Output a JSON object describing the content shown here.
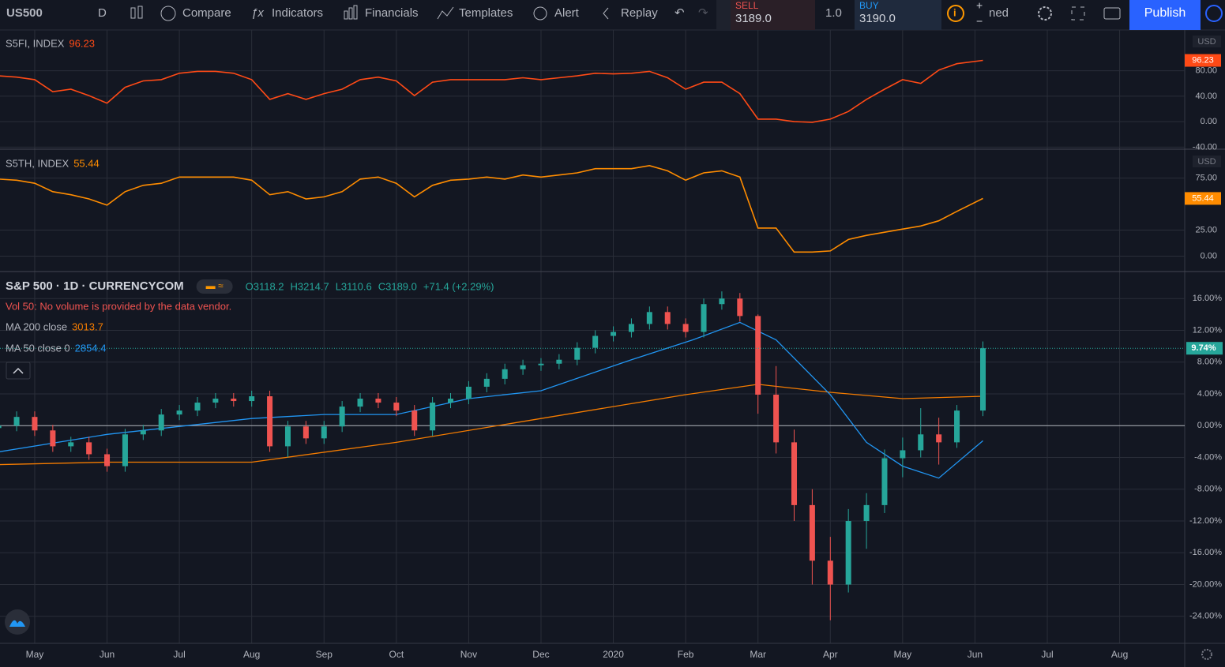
{
  "toolbar": {
    "symbol": "US500",
    "interval": "D",
    "compare": "Compare",
    "indicators": "Indicators",
    "financials": "Financials",
    "templates": "Templates",
    "alert": "Alert",
    "replay": "Replay",
    "sell_label": "SELL",
    "sell_price": "3189.0",
    "quantity": "1.0",
    "buy_label": "BUY",
    "buy_price": "3190.0",
    "layout_name": "ned",
    "publish": "Publish"
  },
  "time_axis": {
    "xlim": [
      -0.48,
      15.9
    ],
    "xticks": [
      {
        "value": 0,
        "label": "May"
      },
      {
        "value": 1,
        "label": "Jun"
      },
      {
        "value": 2,
        "label": "Jul"
      },
      {
        "value": 3,
        "label": "Aug"
      },
      {
        "value": 4,
        "label": "Sep"
      },
      {
        "value": 5,
        "label": "Oct"
      },
      {
        "value": 6,
        "label": "Nov"
      },
      {
        "value": 7,
        "label": "Dec"
      },
      {
        "value": 8,
        "label": "2020"
      },
      {
        "value": 9,
        "label": "Feb"
      },
      {
        "value": 10,
        "label": "Mar"
      },
      {
        "value": 11,
        "label": "Apr"
      },
      {
        "value": 12,
        "label": "May"
      },
      {
        "value": 13,
        "label": "Jun"
      },
      {
        "value": 14,
        "label": "Jul"
      },
      {
        "value": 15,
        "label": "Aug"
      }
    ],
    "x": [
      -0.5,
      -0.25,
      0,
      0.25,
      0.5,
      0.75,
      1,
      1.25,
      1.5,
      1.75,
      2,
      2.25,
      2.5,
      2.75,
      3,
      3.25,
      3.5,
      3.75,
      4,
      4.25,
      4.5,
      4.75,
      5,
      5.25,
      5.5,
      5.75,
      6,
      6.25,
      6.5,
      6.75,
      7,
      7.25,
      7.5,
      7.75,
      8,
      8.25,
      8.5,
      8.75,
      9,
      9.25,
      9.5,
      9.75,
      10,
      10.25,
      10.5,
      10.75,
      11,
      11.25,
      11.5,
      11.75,
      12,
      12.25,
      12.5,
      12.75,
      13.11
    ]
  },
  "panes": [
    {
      "type": "line",
      "name": "S5FI, INDEX",
      "currency": "USD",
      "color": "#ff4a16",
      "values": [
        72,
        70,
        66,
        47,
        51,
        41,
        29,
        54,
        64,
        66,
        76,
        79,
        79,
        76,
        66,
        35,
        44,
        35,
        44,
        51,
        66,
        70,
        64,
        41,
        62,
        66,
        66,
        66,
        66,
        69,
        66,
        69,
        72,
        76,
        75,
        76,
        79,
        69,
        51,
        62,
        62,
        44,
        4,
        4,
        0,
        -1,
        4,
        16,
        35,
        51,
        66,
        60,
        81,
        91,
        96.23
      ],
      "ylim": [
        -42,
        144
      ],
      "yticks": [
        {
          "value": 80,
          "label": "80.00"
        },
        {
          "value": 40,
          "label": "40.00"
        },
        {
          "value": 0,
          "label": "0.00"
        },
        {
          "value": -40,
          "label": "-40.00"
        }
      ]
    },
    {
      "type": "line",
      "name": "S5TH, INDEX",
      "currency": "USD",
      "color": "#ff8c00",
      "values": [
        74,
        73,
        70,
        62,
        59,
        55,
        49,
        62,
        68,
        70,
        76,
        76,
        76,
        76,
        73,
        59,
        62,
        55,
        57,
        62,
        74,
        76,
        70,
        57,
        68,
        73,
        74,
        76,
        74,
        78,
        76,
        78,
        80,
        84,
        84,
        84,
        87,
        82,
        73,
        80,
        82,
        76,
        27,
        27,
        4,
        4,
        5,
        16,
        20,
        23,
        26,
        29,
        34,
        43,
        55.44
      ],
      "ylim": [
        -14,
        102
      ],
      "yticks": [
        {
          "value": 75,
          "label": "75.00"
        },
        {
          "value": 25,
          "label": "25.00"
        },
        {
          "value": 0,
          "label": "0.00"
        }
      ]
    }
  ],
  "main": {
    "type": "candlestick",
    "up_color": "#26a69a",
    "down_color": "#ef5350",
    "title": "S&P 500 · 1D · CURRENCYCOM",
    "open_label": "O3118.2",
    "high_label": "H3214.7",
    "low_label": "L3110.6",
    "close_label": "C3189.0",
    "change_label": "+71.4 (+2.29%)",
    "volume_note": "Vol 50: No volume is provided by the data vendor.",
    "last_label": "9.74%",
    "open": [
      -0.3,
      0,
      1.1,
      -0.6,
      -2.6,
      -2.1,
      -3.6,
      -5.1,
      -1.1,
      -0.6,
      1.4,
      1.9,
      2.9,
      3.4,
      3.1,
      3.7,
      -2.6,
      -0.1,
      -1.6,
      -0.1,
      2.4,
      3.4,
      2.9,
      1.9,
      -0.6,
      2.9,
      3.4,
      4.9,
      5.9,
      7.1,
      7.6,
      7.8,
      8.3,
      9.8,
      11.3,
      11.8,
      12.8,
      14.3,
      12.8,
      11.8,
      15.3,
      16.0,
      13.8,
      3.9,
      -2.1,
      -10.0,
      -17.0,
      -20.0,
      -12.0,
      -10.0,
      -4.1,
      -3.1,
      -1.1,
      -2.1,
      1.9
    ],
    "high": [
      0.7,
      1.8,
      1.8,
      0.1,
      -1.4,
      -1.4,
      -2.9,
      -0.4,
      0.1,
      2.1,
      2.6,
      3.6,
      4.1,
      4.1,
      4.4,
      4.4,
      0.6,
      0.6,
      0.6,
      3.1,
      4.1,
      4.1,
      3.6,
      2.6,
      3.6,
      4.1,
      5.6,
      6.6,
      7.8,
      8.3,
      8.5,
      9.0,
      10.5,
      12.0,
      12.5,
      13.5,
      15.0,
      15.0,
      13.5,
      16.0,
      16.9,
      16.7,
      14.0,
      7.5,
      -0.5,
      -8.0,
      -14.0,
      -10.5,
      -8.5,
      -3.0,
      -1.5,
      2.2,
      1.0,
      2.6,
      10.6
    ],
    "low": [
      -1.0,
      -0.7,
      -1.3,
      -3.3,
      -3.3,
      -4.3,
      -5.8,
      -5.8,
      -1.8,
      -1.3,
      0.7,
      1.2,
      2.2,
      2.4,
      2.4,
      -3.3,
      -4.0,
      -2.3,
      -2.3,
      -0.8,
      1.7,
      2.2,
      1.2,
      -1.3,
      -1.3,
      2.2,
      2.7,
      4.2,
      5.2,
      6.4,
      6.9,
      7.1,
      7.6,
      9.1,
      10.6,
      11.1,
      12.1,
      12.1,
      11.1,
      11.1,
      14.6,
      13.1,
      1.5,
      -3.5,
      -12.0,
      -20.0,
      -24.5,
      -21.0,
      -15.5,
      -11.0,
      -6.5,
      -4.0,
      -4.9,
      -2.8,
      1.2
    ],
    "close": [
      0,
      1.1,
      -0.6,
      -2.6,
      -2.1,
      -3.6,
      -5.1,
      -1.1,
      -0.6,
      1.4,
      1.9,
      2.9,
      3.4,
      3.1,
      3.7,
      -2.6,
      -0.1,
      -1.6,
      -0.1,
      2.4,
      3.4,
      2.9,
      1.9,
      -0.6,
      2.9,
      3.4,
      4.9,
      5.9,
      7.1,
      7.6,
      7.8,
      8.3,
      9.8,
      11.3,
      11.8,
      12.8,
      14.3,
      12.8,
      11.8,
      15.3,
      16.0,
      13.8,
      3.9,
      -2.1,
      -10.0,
      -17.0,
      -20.0,
      -12.0,
      -10.0,
      -4.1,
      -3.1,
      -1.1,
      -2.1,
      1.9,
      9.74
    ],
    "ylim": [
      -27.4,
      19.3
    ],
    "yticks": [
      {
        "value": 16,
        "label": "16.00%"
      },
      {
        "value": 12,
        "label": "12.00%"
      },
      {
        "value": 8,
        "label": "8.00%"
      },
      {
        "value": 4,
        "label": "4.00%"
      },
      {
        "value": 0,
        "label": "0.00%"
      },
      {
        "value": -4,
        "label": "-4.00%"
      },
      {
        "value": -8,
        "label": "-8.00%"
      },
      {
        "value": -12,
        "label": "-12.00%"
      },
      {
        "value": -16,
        "label": "-16.00%"
      },
      {
        "value": -20,
        "label": "-20.00%"
      },
      {
        "value": -24,
        "label": "-24.00%"
      }
    ],
    "studies": [
      {
        "name": "MA 200 close",
        "value_label": "3013.7",
        "color": "#f57c00",
        "x": [
          -0.5,
          1,
          3,
          5,
          7,
          9,
          10,
          11,
          12,
          13.11
        ],
        "values": [
          -4.9,
          -4.6,
          -4.6,
          -2.1,
          0.9,
          3.9,
          5.2,
          4.2,
          3.4,
          3.7
        ]
      },
      {
        "name": "MA 50 close 0",
        "value_label": "2854.4",
        "color": "#2196f3",
        "x": [
          -0.5,
          1,
          3,
          4,
          5,
          6,
          7,
          8.25,
          9.1,
          9.75,
          10.25,
          11,
          11.5,
          12,
          12.5,
          13.11
        ],
        "values": [
          -3.3,
          -1.1,
          0.9,
          1.4,
          1.4,
          3.4,
          4.4,
          8.3,
          10.8,
          13.0,
          10.8,
          3.9,
          -2.1,
          -5.1,
          -6.6,
          -1.9
        ]
      }
    ]
  }
}
